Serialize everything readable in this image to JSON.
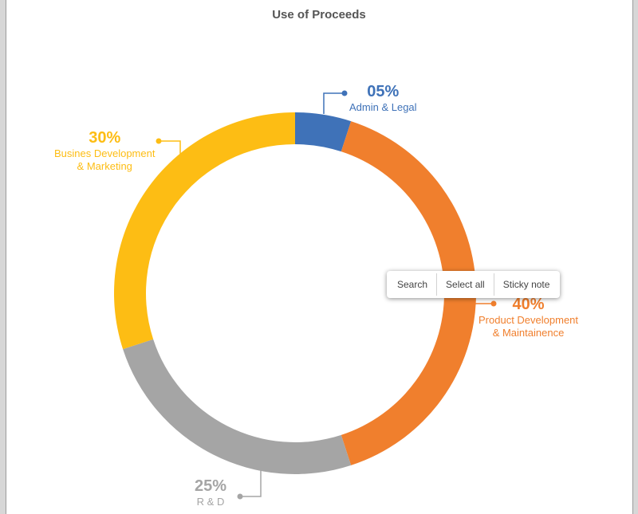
{
  "chart_data": {
    "type": "pie",
    "title": "Use of Proceeds",
    "donut": true,
    "categories": [
      "Admin & Legal",
      "Product Development & Maintainence",
      "R & D",
      "Busines Development & Marketing"
    ],
    "values": [
      5,
      40,
      25,
      30
    ],
    "labels": [
      "05%",
      "40%",
      "25%",
      "30%"
    ],
    "colors": [
      "#3f72b8",
      "#f07f2d",
      "#a5a5a5",
      "#fdbd14"
    ]
  },
  "callouts": [
    {
      "pct": "05%",
      "lines": [
        "Admin & Legal"
      ],
      "color": "#3f72b8"
    },
    {
      "pct": "40%",
      "lines": [
        "Product Development",
        "& Maintainence"
      ],
      "color": "#f07f2d"
    },
    {
      "pct": "25%",
      "lines": [
        "R & D"
      ],
      "color": "#a5a5a5"
    },
    {
      "pct": "30%",
      "lines": [
        "Busines Development",
        "& Marketing"
      ],
      "color": "#fdbd14"
    }
  ],
  "context_menu": {
    "search": "Search",
    "select_all": "Select all",
    "sticky_note": "Sticky note"
  }
}
